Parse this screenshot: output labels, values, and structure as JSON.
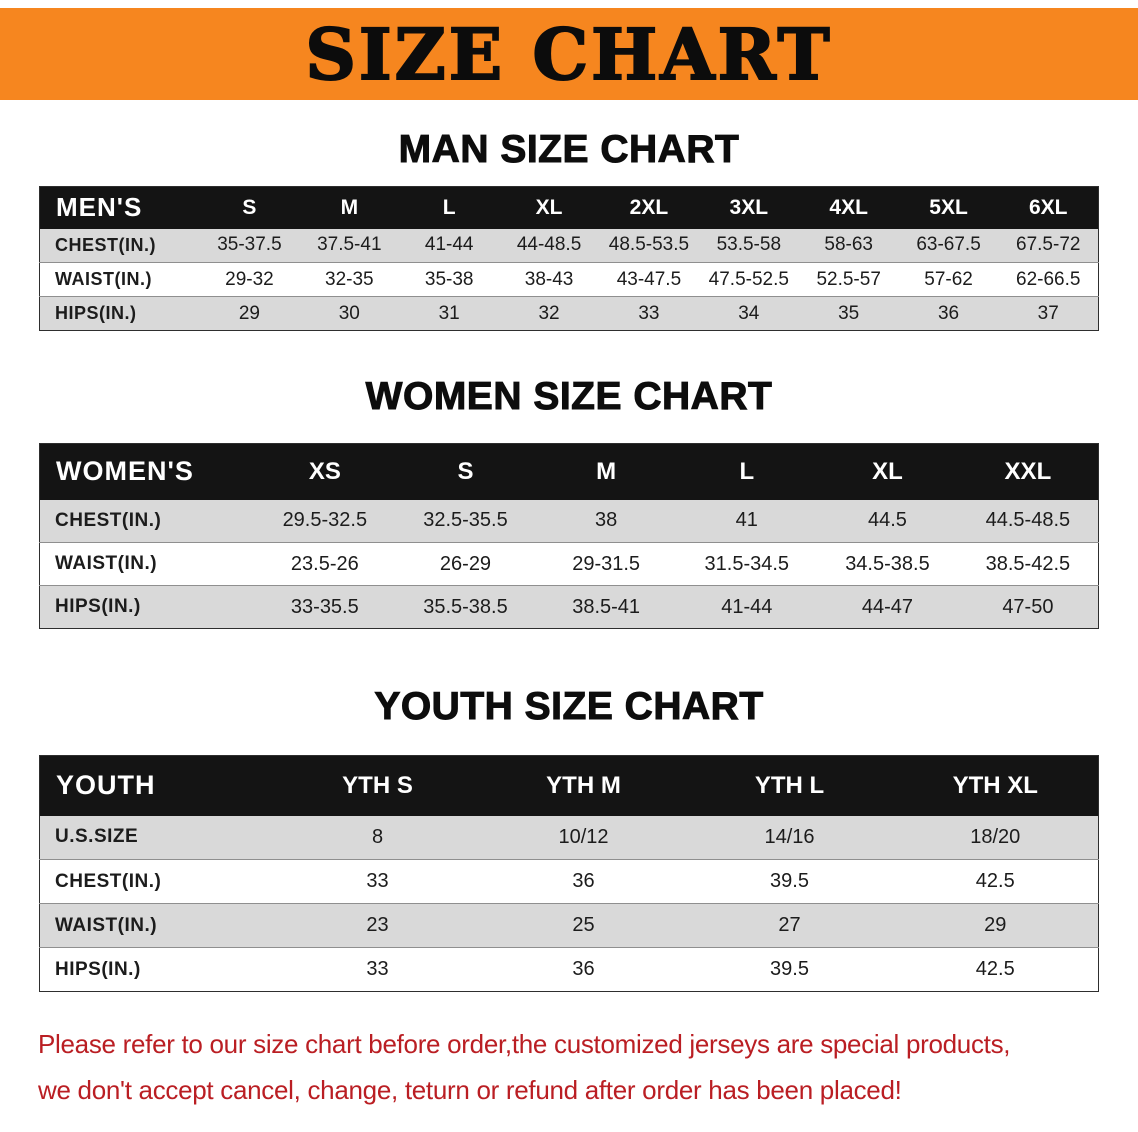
{
  "banner": {
    "title": "SIZE CHART"
  },
  "sections": [
    {
      "heading": "MAN SIZE CHART",
      "table": {
        "header": [
          "MEN'S",
          "S",
          "M",
          "L",
          "XL",
          "2XL",
          "3XL",
          "4XL",
          "5XL",
          "6XL"
        ],
        "rows": [
          [
            "CHEST(IN.)",
            "35-37.5",
            "37.5-41",
            "41-44",
            "44-48.5",
            "48.5-53.5",
            "53.5-58",
            "58-63",
            "63-67.5",
            "67.5-72"
          ],
          [
            "WAIST(IN.)",
            "29-32",
            "32-35",
            "35-38",
            "38-43",
            "43-47.5",
            "47.5-52.5",
            "52.5-57",
            "57-62",
            "62-66.5"
          ],
          [
            "HIPS(IN.)",
            "29",
            "30",
            "31",
            "32",
            "33",
            "34",
            "35",
            "36",
            "37"
          ]
        ]
      }
    },
    {
      "heading": "WOMEN SIZE CHART",
      "table": {
        "header": [
          "WOMEN'S",
          "XS",
          "S",
          "M",
          "L",
          "XL",
          "XXL"
        ],
        "rows": [
          [
            "CHEST(IN.)",
            "29.5-32.5",
            "32.5-35.5",
            "38",
            "41",
            "44.5",
            "44.5-48.5"
          ],
          [
            "WAIST(IN.)",
            "23.5-26",
            "26-29",
            "29-31.5",
            "31.5-34.5",
            "34.5-38.5",
            "38.5-42.5"
          ],
          [
            "HIPS(IN.)",
            "33-35.5",
            "35.5-38.5",
            "38.5-41",
            "41-44",
            "44-47",
            "47-50"
          ]
        ]
      }
    },
    {
      "heading": "YOUTH SIZE CHART",
      "table": {
        "header": [
          "YOUTH",
          "YTH S",
          "YTH M",
          "YTH L",
          "YTH XL"
        ],
        "rows": [
          [
            "U.S.SIZE",
            "8",
            "10/12",
            "14/16",
            "18/20"
          ],
          [
            "CHEST(IN.)",
            "33",
            "36",
            "39.5",
            "42.5"
          ],
          [
            "WAIST(IN.)",
            "23",
            "25",
            "27",
            "29"
          ],
          [
            "HIPS(IN.)",
            "33",
            "36",
            "39.5",
            "42.5"
          ]
        ]
      }
    }
  ],
  "footer": {
    "line1": "Please refer to our size chart before order,the customized jerseys are special products,",
    "line2": "we don't accept cancel, change, teturn or refund after order has been placed!"
  },
  "colors": {
    "banner_bg": "#F6861F",
    "table_header_bg": "#141414",
    "row_alt_bg": "#D9D9D9",
    "footer_text": "#BA1E23"
  }
}
